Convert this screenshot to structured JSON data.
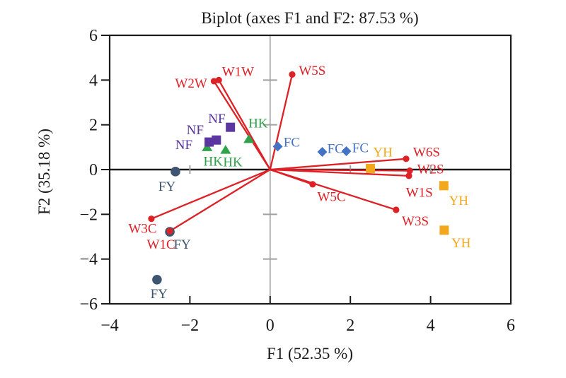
{
  "title": "Biplot (axes F1 and F2: 87.53 %)",
  "chart_data": {
    "type": "scatter",
    "subtype": "pca-biplot",
    "title": "Biplot (axes F1 and F2: 87.53 %)",
    "xlabel": "F1 (52.35 %)",
    "ylabel": "F2 (35.18 %)",
    "xlim": [
      -4,
      6
    ],
    "ylim": [
      -6,
      6
    ],
    "grid": false,
    "legend": "none",
    "x_ticks": [
      {
        "v": -4,
        "label": "−4"
      },
      {
        "v": -2,
        "label": "−2"
      },
      {
        "v": 0,
        "label": "0"
      },
      {
        "v": 2,
        "label": "2"
      },
      {
        "v": 4,
        "label": "4"
      },
      {
        "v": 6,
        "label": "6"
      }
    ],
    "y_ticks": [
      {
        "v": 6,
        "label": "6"
      },
      {
        "v": 4,
        "label": "4"
      },
      {
        "v": 2,
        "label": "2"
      },
      {
        "v": 0,
        "label": "0"
      },
      {
        "v": -2,
        "label": "−2"
      },
      {
        "v": -4,
        "label": "−4"
      },
      {
        "v": -6,
        "label": "−6"
      }
    ],
    "zero_line_minor_ticks": {
      "x_line": [
        -2,
        2,
        4
      ],
      "y_line": [
        -4,
        -2,
        2,
        4
      ]
    },
    "vector_color": "#dd2127",
    "vectors": [
      {
        "name": "W1W",
        "x": -1.28,
        "y": 4.0,
        "lx": -0.8,
        "ly": 4.4
      },
      {
        "name": "W2W",
        "x": -1.4,
        "y": 3.95,
        "lx": -1.97,
        "ly": 3.88
      },
      {
        "name": "W5S",
        "x": 0.55,
        "y": 4.25,
        "lx": 1.05,
        "ly": 4.46
      },
      {
        "name": "W6S",
        "x": 3.39,
        "y": 0.48,
        "lx": 3.9,
        "ly": 0.8
      },
      {
        "name": "W2S",
        "x": 3.48,
        "y": -0.05,
        "lx": 4.0,
        "ly": 0.05
      },
      {
        "name": "W1S",
        "x": 3.46,
        "y": -0.28,
        "lx": 3.72,
        "ly": -1.0
      },
      {
        "name": "W3S",
        "x": 3.14,
        "y": -1.8,
        "lx": 3.62,
        "ly": -2.28
      },
      {
        "name": "W5C",
        "x": 1.06,
        "y": -0.66,
        "lx": 1.53,
        "ly": -1.18
      },
      {
        "name": "W3C",
        "x": -2.96,
        "y": -2.2,
        "lx": -3.18,
        "ly": -2.6
      },
      {
        "name": "W1C",
        "x": -2.5,
        "y": -2.75,
        "lx": -2.72,
        "ly": -3.32
      }
    ],
    "groups": [
      {
        "name": "HK",
        "marker": "triangle",
        "color": "#2fa34a",
        "points": [
          {
            "x": -0.53,
            "y": 1.36
          },
          {
            "x": -1.11,
            "y": 0.88
          },
          {
            "x": -1.57,
            "y": 1.0
          }
        ],
        "labels": [
          {
            "text": "HK",
            "x": -0.3,
            "y": 2.1
          },
          {
            "text": "HK",
            "x": -0.93,
            "y": 0.37
          },
          {
            "text": "HK",
            "x": -1.42,
            "y": 0.4
          }
        ]
      },
      {
        "name": "NF",
        "marker": "square",
        "color": "#5b35a0",
        "points": [
          {
            "x": -0.99,
            "y": 1.89
          },
          {
            "x": -1.52,
            "y": 1.23
          },
          {
            "x": -1.34,
            "y": 1.32
          }
        ],
        "labels": [
          {
            "text": "NF",
            "x": -1.33,
            "y": 2.3
          },
          {
            "text": "NF",
            "x": -1.87,
            "y": 1.8
          },
          {
            "text": "NF",
            "x": -2.15,
            "y": 1.13
          }
        ]
      },
      {
        "name": "FC",
        "marker": "diamond",
        "color": "#4472c4",
        "points": [
          {
            "x": 0.19,
            "y": 1.03
          },
          {
            "x": 1.3,
            "y": 0.79
          },
          {
            "x": 1.9,
            "y": 0.82
          }
        ],
        "labels": [
          {
            "text": "FC",
            "x": 0.54,
            "y": 1.25
          },
          {
            "text": "FC",
            "x": 1.63,
            "y": 0.97
          },
          {
            "text": "FC",
            "x": 2.25,
            "y": 1.0
          }
        ]
      },
      {
        "name": "YH",
        "marker": "square",
        "color": "#f2a71c",
        "points": [
          {
            "x": 2.5,
            "y": 0.05
          },
          {
            "x": 4.33,
            "y": -0.72
          },
          {
            "x": 4.34,
            "y": -2.71
          }
        ],
        "labels": [
          {
            "text": "YH",
            "x": 2.81,
            "y": 0.8
          },
          {
            "text": "YH",
            "x": 4.7,
            "y": -1.35
          },
          {
            "text": "YH",
            "x": 4.76,
            "y": -3.25
          }
        ]
      },
      {
        "name": "FY",
        "marker": "circle",
        "color": "#3e5571",
        "points": [
          {
            "x": -2.36,
            "y": -0.09
          },
          {
            "x": -2.5,
            "y": -2.78
          },
          {
            "x": -2.82,
            "y": -4.92
          }
        ],
        "labels": [
          {
            "text": "FY",
            "x": -2.57,
            "y": -0.72
          },
          {
            "text": "FY",
            "x": -2.19,
            "y": -3.32
          },
          {
            "text": "FY",
            "x": -2.77,
            "y": -5.52
          }
        ]
      }
    ],
    "axis_color": "#1a1a1a",
    "zero_x_line_color": "#a0a0a0",
    "zero_y_line_color": "#1a1a1a"
  }
}
